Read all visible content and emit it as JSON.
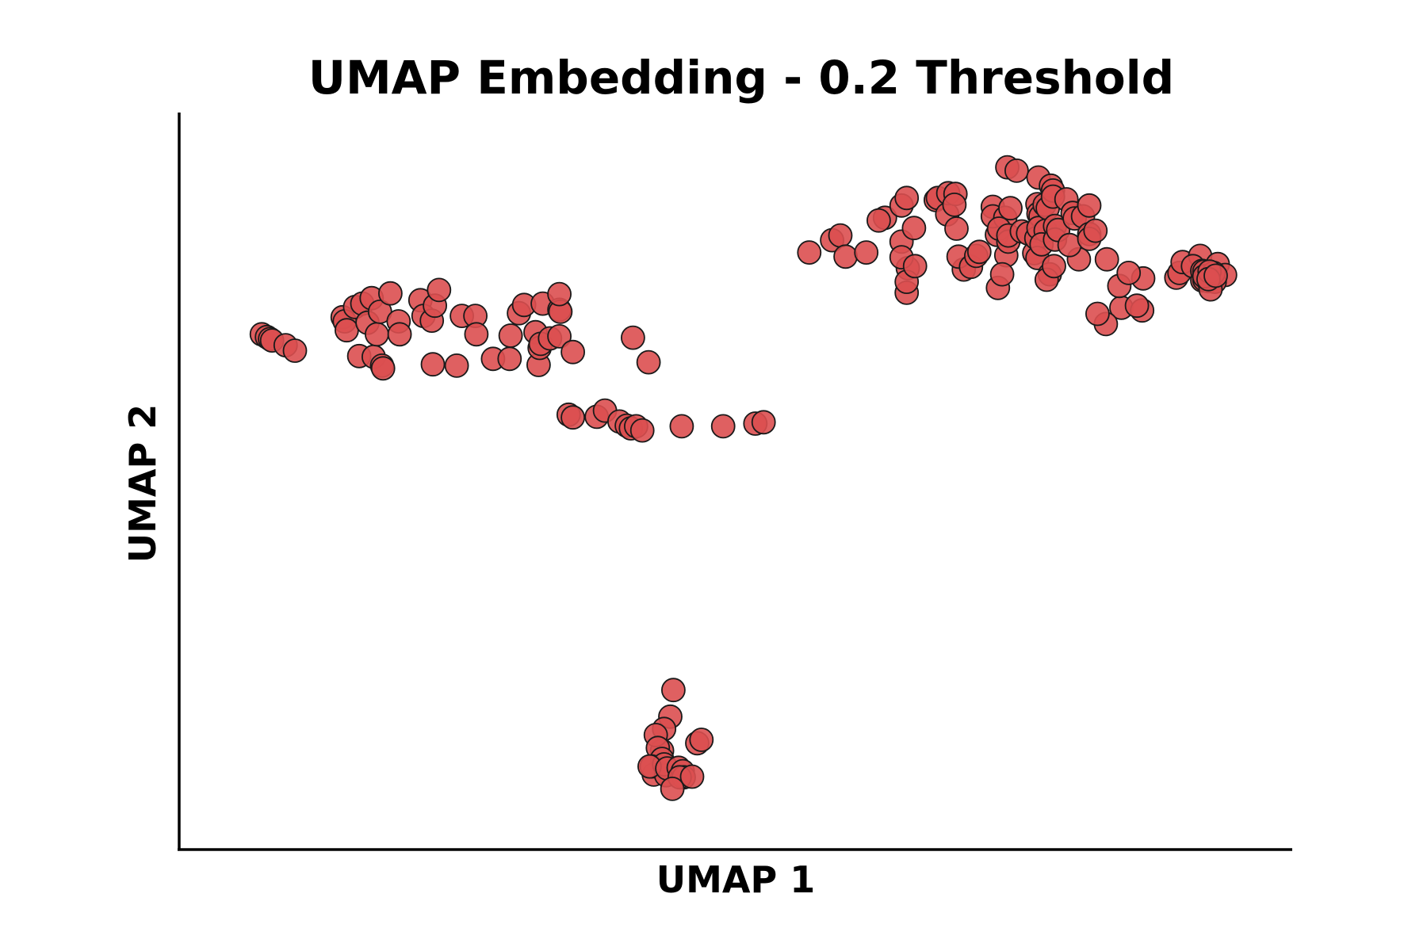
{
  "chart_data": {
    "type": "scatter",
    "title": "UMAP Embedding - 0.2 Threshold",
    "xlabel": "UMAP 1",
    "ylabel": "UMAP 2",
    "xlim": [
      0,
      100
    ],
    "ylim": [
      0,
      100
    ],
    "grid": false,
    "ticks": false,
    "colors": {
      "point_fill": "#dc4f50",
      "point_stroke": "#1a1a1a",
      "axis": "#000000"
    },
    "series": [
      {
        "points": [
          [
            4.6,
            71.3
          ],
          [
            5.1,
            70.9
          ],
          [
            5.4,
            70.6
          ],
          [
            5.6,
            70.4
          ],
          [
            6.9,
            69.7
          ],
          [
            7.8,
            68.9
          ],
          [
            12.4,
            73.8
          ],
          [
            12.6,
            73.2
          ],
          [
            12.8,
            71.9
          ],
          [
            13.6,
            75.3
          ],
          [
            14.0,
            68.1
          ],
          [
            14.3,
            75.8
          ],
          [
            14.8,
            73.0
          ],
          [
            15.2,
            76.6
          ],
          [
            15.4,
            68.0
          ],
          [
            15.7,
            71.3
          ],
          [
            16.0,
            74.6
          ],
          [
            16.2,
            66.7
          ],
          [
            16.3,
            66.3
          ],
          [
            17.0,
            77.3
          ],
          [
            17.8,
            73.2
          ],
          [
            17.9,
            71.3
          ],
          [
            19.9,
            76.3
          ],
          [
            20.2,
            74.0
          ],
          [
            21.0,
            73.3
          ],
          [
            21.1,
            66.9
          ],
          [
            21.3,
            75.5
          ],
          [
            21.7,
            77.8
          ],
          [
            23.4,
            66.7
          ],
          [
            23.9,
            74.0
          ],
          [
            25.2,
            74.0
          ],
          [
            25.3,
            71.3
          ],
          [
            26.9,
            67.7
          ],
          [
            28.5,
            67.7
          ],
          [
            28.6,
            71.1
          ],
          [
            29.4,
            74.4
          ],
          [
            29.9,
            75.6
          ],
          [
            31.0,
            71.6
          ],
          [
            31.3,
            66.8
          ],
          [
            31.4,
            69.3
          ],
          [
            31.5,
            69.9
          ],
          [
            31.7,
            75.8
          ],
          [
            32.4,
            70.7
          ],
          [
            33.3,
            71.0
          ],
          [
            33.3,
            74.9
          ],
          [
            33.4,
            74.6
          ],
          [
            33.3,
            77.2
          ],
          [
            34.6,
            68.7
          ],
          [
            34.2,
            59.5
          ],
          [
            34.6,
            59.1
          ],
          [
            36.9,
            59.2
          ],
          [
            37.7,
            60.1
          ],
          [
            39.1,
            58.5
          ],
          [
            39.8,
            57.9
          ],
          [
            40.2,
            57.5
          ],
          [
            40.7,
            57.8
          ],
          [
            41.3,
            57.2
          ],
          [
            45.1,
            57.8
          ],
          [
            49.1,
            57.8
          ],
          [
            52.2,
            58.2
          ],
          [
            53.0,
            58.4
          ],
          [
            40.4,
            70.8
          ],
          [
            41.9,
            67.2
          ],
          [
            44.3,
            19.1
          ],
          [
            44.0,
            15.2
          ],
          [
            43.4,
            13.4
          ],
          [
            43.2,
            10.2
          ],
          [
            42.6,
            12.5
          ],
          [
            42.8,
            10.6
          ],
          [
            43.2,
            9.0
          ],
          [
            42.4,
            6.7
          ],
          [
            42.2,
            7.9
          ],
          [
            43.6,
            6.6
          ],
          [
            43.4,
            8.2
          ],
          [
            42.0,
            7.9
          ],
          [
            43.7,
            7.6
          ],
          [
            44.8,
            7.7
          ],
          [
            45.2,
            7.2
          ],
          [
            45.3,
            6.3
          ],
          [
            44.9,
            6.3
          ],
          [
            46.1,
            6.4
          ],
          [
            46.6,
            11.3
          ],
          [
            47.0,
            11.8
          ],
          [
            44.2,
            4.6
          ],
          [
            57.4,
            83.3
          ],
          [
            59.6,
            85.1
          ],
          [
            60.4,
            85.8
          ],
          [
            60.9,
            82.7
          ],
          [
            62.9,
            83.3
          ],
          [
            64.7,
            88.4
          ],
          [
            64.1,
            88.0
          ],
          [
            66.3,
            90.2
          ],
          [
            66.8,
            91.3
          ],
          [
            66.3,
            84.9
          ],
          [
            67.5,
            86.9
          ],
          [
            66.9,
            81.0
          ],
          [
            66.3,
            82.6
          ],
          [
            66.8,
            77.4
          ],
          [
            66.8,
            79.0
          ],
          [
            67.6,
            81.3
          ],
          [
            69.6,
            91.0
          ],
          [
            69.8,
            91.3
          ],
          [
            70.7,
            88.9
          ],
          [
            70.8,
            92.0
          ],
          [
            71.5,
            91.9
          ],
          [
            71.4,
            90.3
          ],
          [
            72.3,
            80.8
          ],
          [
            71.8,
            82.7
          ],
          [
            71.6,
            86.8
          ],
          [
            73.0,
            81.2
          ],
          [
            73.5,
            82.8
          ],
          [
            73.8,
            83.4
          ],
          [
            75.1,
            90.0
          ],
          [
            75.5,
            85.9
          ],
          [
            75.1,
            88.6
          ],
          [
            76.3,
            88.4
          ],
          [
            75.7,
            86.8
          ],
          [
            76.4,
            82.9
          ],
          [
            76.6,
            84.9
          ],
          [
            75.6,
            78.1
          ],
          [
            76.5,
            95.8
          ],
          [
            76.6,
            85.8
          ],
          [
            76.0,
            80.1
          ],
          [
            76.8,
            89.8
          ],
          [
            77.4,
            95.3
          ],
          [
            77.9,
            86.4
          ],
          [
            78.5,
            86.1
          ],
          [
            79.1,
            83.2
          ],
          [
            79.3,
            85.4
          ],
          [
            79.4,
            90.4
          ],
          [
            79.5,
            89.0
          ],
          [
            79.7,
            88.6
          ],
          [
            79.5,
            86.9
          ],
          [
            79.5,
            94.3
          ],
          [
            79.4,
            82.5
          ],
          [
            80.1,
            90.3
          ],
          [
            80.4,
            89.8
          ],
          [
            80.2,
            86.5
          ],
          [
            79.8,
            84.5
          ],
          [
            80.7,
            93.1
          ],
          [
            80.9,
            92.4
          ],
          [
            80.9,
            91.5
          ],
          [
            80.6,
            80.1
          ],
          [
            80.3,
            79.3
          ],
          [
            81.0,
            81.3
          ],
          [
            81.1,
            87.2
          ],
          [
            81.1,
            85.2
          ],
          [
            81.4,
            86.6
          ],
          [
            82.2,
            91.1
          ],
          [
            82.8,
            89.1
          ],
          [
            83.4,
            82.3
          ],
          [
            83.0,
            88.3
          ],
          [
            82.5,
            84.4
          ],
          [
            83.8,
            88.6
          ],
          [
            84.4,
            86.0
          ],
          [
            84.4,
            85.3
          ],
          [
            85.0,
            86.5
          ],
          [
            84.4,
            90.2
          ],
          [
            86.1,
            82.3
          ],
          [
            87.5,
            75.2
          ],
          [
            89.5,
            74.8
          ],
          [
            89.0,
            75.5
          ],
          [
            86.0,
            72.8
          ],
          [
            85.2,
            74.3
          ],
          [
            87.3,
            78.4
          ],
          [
            89.6,
            79.5
          ],
          [
            88.2,
            80.3
          ],
          [
            92.8,
            79.6
          ],
          [
            93.1,
            80.3
          ],
          [
            93.4,
            81.9
          ],
          [
            95.7,
            80.1
          ],
          [
            95.1,
            82.8
          ],
          [
            96.3,
            79.5
          ],
          [
            94.4,
            81.3
          ],
          [
            95.5,
            80.2
          ],
          [
            96.8,
            81.6
          ],
          [
            95.3,
            79.2
          ],
          [
            95.6,
            79.9
          ],
          [
            95.5,
            79.3
          ],
          [
            96.2,
            80.3
          ],
          [
            95.9,
            79.1
          ],
          [
            97.5,
            80.0
          ],
          [
            95.3,
            80.6
          ],
          [
            95.5,
            80.5
          ],
          [
            96.5,
            79.0
          ],
          [
            95.7,
            79.8
          ],
          [
            96.1,
            77.9
          ],
          [
            95.5,
            79.8
          ],
          [
            96.4,
            80.3
          ],
          [
            96.0,
            80.5
          ],
          [
            95.9,
            79.4
          ],
          [
            96.6,
            79.9
          ]
        ]
      }
    ]
  }
}
